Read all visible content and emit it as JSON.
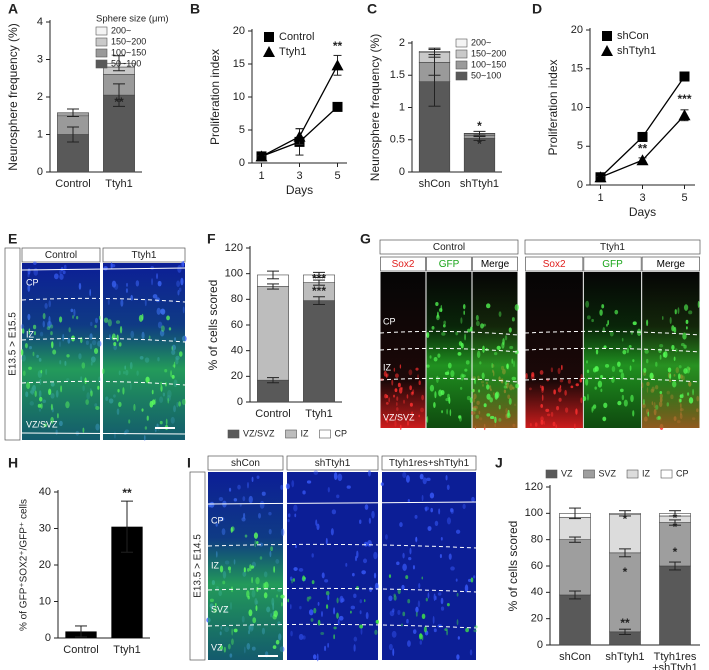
{
  "chart_data": [
    {
      "type": "stacked_bar",
      "panel_label": "A",
      "y_label": "Neurosphere frequency (%)",
      "categories": [
        "Control",
        "Ttyh1"
      ],
      "legend_title": "Sphere size (μm)",
      "legend": "upper-right",
      "series": [
        {
          "name": "50~100",
          "color": "#595959",
          "values": [
            1.0,
            2.05
          ],
          "errors": [
            0.2,
            0.3
          ]
        },
        {
          "name": "100~150",
          "color": "#9a9a9a",
          "values": [
            0.5,
            0.55
          ],
          "errors": [
            null,
            null
          ]
        },
        {
          "name": "150~200",
          "color": "#c9c9c9",
          "values": [
            0.05,
            0.2
          ],
          "errors": [
            null,
            null
          ]
        },
        {
          "name": "200~",
          "color": "#f4f4f4",
          "values": [
            0.03,
            0.1
          ],
          "errors": [
            0.1,
            0.2
          ]
        }
      ],
      "ylim": [
        0,
        4
      ],
      "yticks": [
        0,
        1,
        2,
        3,
        4
      ],
      "annotations": [
        {
          "text": "**",
          "category": "Ttyh1",
          "y": 1.85
        }
      ]
    },
    {
      "type": "line",
      "panel_label": "B",
      "y_label": "Proliferation index",
      "x_label": "Days",
      "x": [
        1,
        3,
        5
      ],
      "legend": "upper-left",
      "series": [
        {
          "name": "Control",
          "color": "#000000",
          "marker": "square",
          "values": [
            1,
            3.2,
            8.5
          ],
          "errors": [
            0.1,
            2.0,
            0.3
          ]
        },
        {
          "name": "Ttyh1",
          "color": "#000000",
          "marker": "triangle",
          "values": [
            1,
            4,
            14.8
          ],
          "errors": [
            0.1,
            1.2,
            1.5
          ]
        }
      ],
      "xlim": [
        0.5,
        5.5
      ],
      "xticks": [
        1,
        3,
        5
      ],
      "ylim": [
        0,
        20
      ],
      "yticks": [
        0,
        5,
        10,
        15,
        20
      ],
      "annotations": [
        {
          "text": "**",
          "x": 5,
          "y": 17.6
        }
      ]
    },
    {
      "type": "stacked_bar",
      "panel_label": "C",
      "y_label": "Neurosphere frequency (%)",
      "categories": [
        "shCon",
        "shTtyh1"
      ],
      "legend": "upper-right",
      "series": [
        {
          "name": "50~100",
          "color": "#595959",
          "values": [
            1.4,
            0.52
          ],
          "errors": [
            0.38,
            0.03
          ]
        },
        {
          "name": "100~150",
          "color": "#9a9a9a",
          "values": [
            0.3,
            0.05
          ],
          "errors": [
            0.2,
            null
          ]
        },
        {
          "name": "150~200",
          "color": "#c9c9c9",
          "values": [
            0.15,
            0.02
          ],
          "errors": [
            null,
            null
          ]
        },
        {
          "name": "200~",
          "color": "#f4f4f4",
          "values": [
            0.02,
            0.01
          ],
          "errors": [
            0.05,
            0.03
          ]
        }
      ],
      "ylim": [
        0,
        2
      ],
      "yticks": [
        0,
        0.5,
        1,
        1.5,
        2
      ],
      "annotations": [
        {
          "text": "*",
          "category": "shTtyh1",
          "y": 0.7
        },
        {
          "text": "*",
          "category": "shTtyh1",
          "y": 0.42
        }
      ]
    },
    {
      "type": "line",
      "panel_label": "D",
      "y_label": "Proliferation index",
      "x_label": "Days",
      "x": [
        1,
        3,
        5
      ],
      "legend": "upper-left",
      "series": [
        {
          "name": "shCon",
          "color": "#000000",
          "marker": "square",
          "values": [
            1,
            6.2,
            14
          ],
          "errors": [
            0.1,
            0.3,
            0.4
          ]
        },
        {
          "name": "shTtyh1",
          "color": "#000000",
          "marker": "triangle",
          "values": [
            1,
            3.2,
            9
          ],
          "errors": [
            0.1,
            0.3,
            0.7
          ]
        }
      ],
      "xlim": [
        0.5,
        5.5
      ],
      "xticks": [
        1,
        3,
        5
      ],
      "ylim": [
        0,
        20
      ],
      "yticks": [
        0,
        5,
        10,
        15,
        20
      ],
      "annotations": [
        {
          "text": "**",
          "x": 3,
          "y": 4.6
        },
        {
          "text": "***",
          "x": 5,
          "y": 11
        }
      ]
    },
    {
      "type": "stacked_bar",
      "panel_label": "F",
      "y_label": "% of cells scored",
      "categories": [
        "Control",
        "Ttyh1"
      ],
      "legend": "bottom",
      "series": [
        {
          "name": "VZ/SVZ",
          "color": "#595959",
          "values": [
            17,
            79
          ],
          "errors": [
            2,
            3
          ]
        },
        {
          "name": "IZ",
          "color": "#bdbdbd",
          "values": [
            73,
            14
          ],
          "errors": [
            2,
            2
          ]
        },
        {
          "name": "CP",
          "color": "#ffffff",
          "values": [
            9,
            6
          ],
          "errors": [
            3,
            2
          ]
        }
      ],
      "ylim": [
        0,
        120
      ],
      "yticks": [
        0,
        20,
        40,
        60,
        80,
        100,
        120
      ],
      "annotations": [
        {
          "text": "***",
          "category": "Ttyh1",
          "y": 95.5
        },
        {
          "text": "***",
          "category": "Ttyh1",
          "y": 86
        }
      ]
    },
    {
      "type": "bar",
      "panel_label": "H",
      "y_label": "% of GFP⁺SOX2⁺/GFP⁺ cells",
      "categories": [
        "Control",
        "Ttyh1"
      ],
      "color": "#000000",
      "values": [
        1.8,
        30.5
      ],
      "errors": [
        1.5,
        7
      ],
      "ylim": [
        0,
        40
      ],
      "yticks": [
        0,
        10,
        20,
        30,
        40
      ],
      "annotations": [
        {
          "text": "**",
          "category": "Ttyh1",
          "y": 39.5
        }
      ]
    },
    {
      "type": "stacked_bar",
      "panel_label": "J",
      "y_label": "% of cells scored",
      "categories": [
        "shCon",
        "shTtyh1",
        "Ttyh1res+shTtyh1"
      ],
      "legend": "top",
      "series": [
        {
          "name": "VZ",
          "color": "#595959",
          "values": [
            38,
            10,
            60
          ],
          "errors": [
            3,
            2,
            3
          ]
        },
        {
          "name": "SVZ",
          "color": "#9e9e9e",
          "values": [
            42,
            60,
            33
          ],
          "errors": [
            2,
            3,
            2
          ]
        },
        {
          "name": "IZ",
          "color": "#dcdcdc",
          "values": [
            17,
            29,
            5
          ],
          "errors": [
            null,
            null,
            null
          ]
        },
        {
          "name": "CP",
          "color": "#ffffff",
          "values": [
            3,
            1,
            2
          ],
          "errors": [
            4,
            2,
            2
          ]
        }
      ],
      "ylim": [
        0,
        120
      ],
      "yticks": [
        0,
        20,
        40,
        60,
        80,
        100,
        120
      ],
      "annotations": [
        {
          "text": "*",
          "category": "shTtyh1",
          "y": 95
        },
        {
          "text": "*",
          "category": "shTtyh1",
          "y": 55
        },
        {
          "text": "**",
          "category": "shTtyh1",
          "y": 16
        },
        {
          "text": "*",
          "category": "Ttyh1res+shTtyh1",
          "y": 96
        },
        {
          "text": "*",
          "category": "Ttyh1res+shTtyh1",
          "y": 89
        },
        {
          "text": "*",
          "category": "Ttyh1res+shTtyh1",
          "y": 70
        }
      ]
    }
  ],
  "image_panels": {
    "E": {
      "panel_label": "E",
      "columns": [
        "Control",
        "Ttyh1"
      ],
      "side_label": "E13.5 > E15.5",
      "zones": [
        "CP",
        "IZ",
        "VZ/SVZ"
      ]
    },
    "G": {
      "panel_label": "G",
      "groups": [
        {
          "name": "Control",
          "channels": [
            "Sox2",
            "GFP",
            "Merge"
          ]
        },
        {
          "name": "Ttyh1",
          "channels": [
            "Sox2",
            "GFP",
            "Merge"
          ]
        }
      ],
      "zones": [
        "CP",
        "IZ",
        "VZ/SVZ"
      ]
    },
    "I": {
      "panel_label": "I",
      "columns": [
        "shCon",
        "shTtyh1",
        "Ttyh1res+shTtyh1"
      ],
      "side_label": "E13.5 > E14.5",
      "zones": [
        "CP",
        "IZ",
        "SVZ",
        "VZ"
      ]
    }
  }
}
